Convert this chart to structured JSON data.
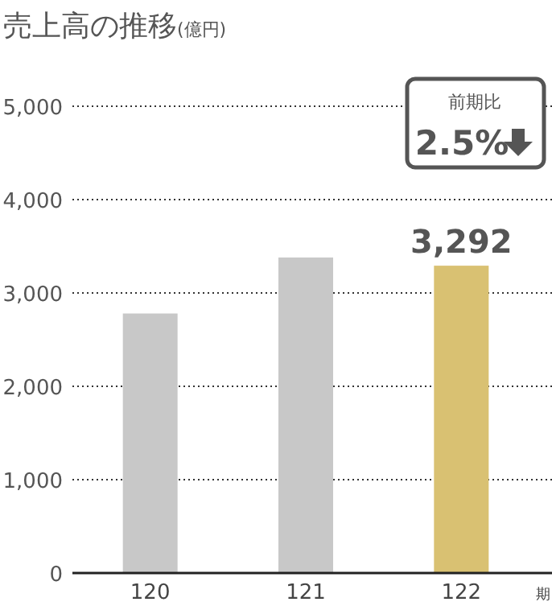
{
  "chart_data": {
    "type": "bar",
    "title": "売上高の推移",
    "subtitle": "(億円)",
    "xlabel": "期",
    "categories": [
      "120",
      "121",
      "122"
    ],
    "values": [
      2780,
      3380,
      3292
    ],
    "colors": [
      "#c8c8c8",
      "#c8c8c8",
      "#d9c172"
    ],
    "value_labels": [
      null,
      null,
      "3,292"
    ],
    "ylim": [
      0,
      5000
    ],
    "yticks": [
      0,
      {
        "value": 1000,
        "label": "1,000"
      },
      {
        "value": 2000,
        "label": "2,000"
      },
      {
        "value": 3000,
        "label": "3,000"
      },
      {
        "value": 4000,
        "label": "4,000"
      },
      {
        "value": 5000,
        "label": "5,000"
      }
    ],
    "grid": "y",
    "annotations": [
      "前期比",
      "2.5%"
    ]
  }
}
